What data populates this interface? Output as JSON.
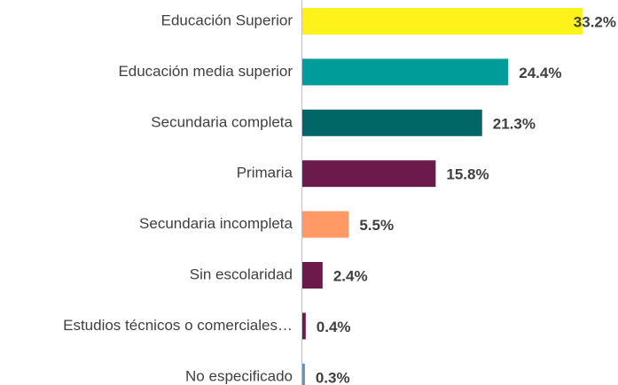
{
  "chart_data": {
    "type": "barh",
    "categories": [
      "Educación Superior",
      "Educación media superior",
      "Secundaria completa",
      "Primaria",
      "Secundaria incompleta",
      "Sin escolaridad",
      "Estudios técnicos o comerciales…",
      "No especificado"
    ],
    "values": [
      33.2,
      24.4,
      21.3,
      15.8,
      5.5,
      2.4,
      0.4,
      0.3
    ],
    "value_labels": [
      "33.2%",
      "24.4%",
      "21.3%",
      "15.8%",
      "5.5%",
      "2.4%",
      "0.4%",
      "0.3%"
    ],
    "colors": [
      "#fff21a",
      "#009c99",
      "#006666",
      "#6b1a4b",
      "#ff9966",
      "#6b1a4b",
      "#6b1a4b",
      "#5b8fd6"
    ]
  }
}
